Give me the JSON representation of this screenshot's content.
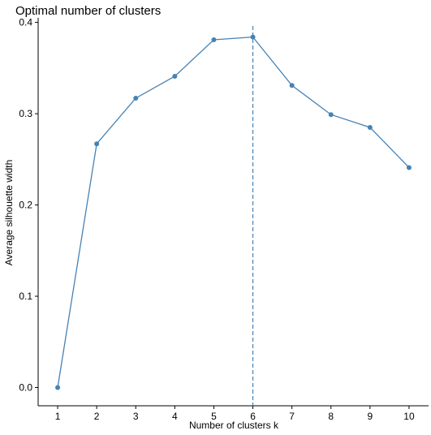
{
  "chart_data": {
    "type": "line",
    "title": "Optimal number of clusters",
    "xlabel": "Number of clusters k",
    "ylabel": "Average silhouette width",
    "categories": [
      "1",
      "2",
      "3",
      "4",
      "5",
      "6",
      "7",
      "8",
      "9",
      "10"
    ],
    "values": [
      0.0,
      0.267,
      0.317,
      0.341,
      0.381,
      0.384,
      0.331,
      0.299,
      0.285,
      0.241
    ],
    "optimal_k": "6",
    "ylim": [
      -0.02,
      0.405
    ],
    "yticks": [
      0.0,
      0.1,
      0.2,
      0.3,
      0.4
    ],
    "ytick_labels": [
      "0.0",
      "0.1",
      "0.2",
      "0.3",
      "0.4"
    ],
    "grid": false,
    "legend": "none",
    "colors": {
      "line": "#4682B4",
      "points": "#4682B4",
      "vline": "#4682B4",
      "axis": "#000000"
    }
  }
}
